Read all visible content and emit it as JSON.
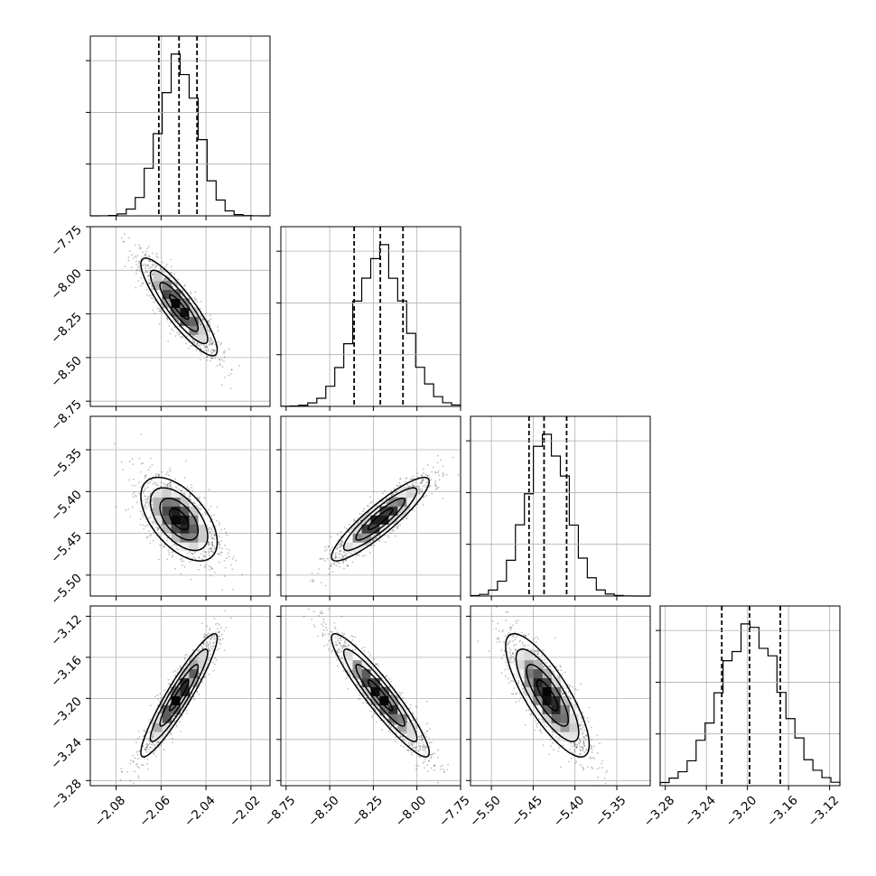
{
  "chart_data": {
    "type": "corner",
    "parameters": [
      {
        "mean": -2.052,
        "std": 0.0085,
        "range": [
          -2.0915,
          -2.0115
        ],
        "ticks": [
          -2.08,
          -2.06,
          -2.04,
          -2.02
        ],
        "tick_labels": [
          "−2.08",
          "−2.06",
          "−2.04",
          "−2.02"
        ],
        "quantiles": [
          -2.061,
          -2.052,
          -2.044
        ]
      },
      {
        "mean": -8.21,
        "std": 0.14,
        "range": [
          -8.78,
          -7.75
        ],
        "ticks": [
          -8.75,
          -8.5,
          -8.25,
          -8.0,
          -7.75
        ],
        "tick_labels": [
          "−8.75",
          "−8.50",
          "−8.25",
          "−8.00",
          "−7.75"
        ],
        "quantiles": [
          -8.36,
          -8.21,
          -8.08
        ]
      },
      {
        "mean": -5.433,
        "std": 0.025,
        "range": [
          -5.525,
          -5.31
        ],
        "ticks": [
          -5.5,
          -5.45,
          -5.4,
          -5.35
        ],
        "tick_labels": [
          "−5.50",
          "−5.45",
          "−5.40",
          "−5.35"
        ],
        "quantiles": [
          -5.455,
          -5.437,
          -5.41
        ]
      },
      {
        "mean": -3.197,
        "std": 0.03,
        "range": [
          -3.285,
          -3.11
        ],
        "ticks": [
          -3.28,
          -3.24,
          -3.2,
          -3.16,
          -3.12
        ],
        "tick_labels": [
          "−3.28",
          "−3.24",
          "−3.20",
          "−3.16",
          "−3.12"
        ],
        "quantiles": [
          -3.225,
          -3.198,
          -3.168
        ]
      }
    ],
    "correlations": [
      [
        1.0,
        -0.88,
        -0.55,
        0.93
      ],
      [
        -0.88,
        1.0,
        0.9,
        -0.93
      ],
      [
        -0.55,
        0.9,
        1.0,
        -0.8
      ],
      [
        0.93,
        -0.93,
        -0.8,
        1.0
      ]
    ],
    "contour_levels_sigma": [
      0.5,
      1.0,
      1.5,
      2.0
    ],
    "histogram_bins": 20,
    "grid": true,
    "colors": {
      "line": "#000000",
      "grid": "#b0b0b0",
      "points": "#000000"
    }
  }
}
